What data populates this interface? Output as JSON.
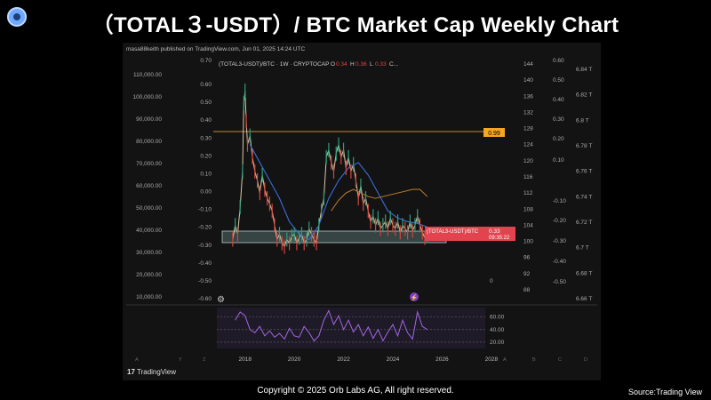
{
  "header": {
    "title": "（TOTAL３-USDT）/ BTC  Market Cap Weekly Chart"
  },
  "chart_info": {
    "published": "masa88keith published on TradingView.com, Jun 01, 2025 14:24 UTC",
    "symbol": "(TOTAL3-USDT)/BTC · 1W · CRYPTOCAP",
    "o_label": "O",
    "o_val": "0.34",
    "h_label": "H",
    "h_val": "0.36",
    "l_label": "L",
    "l_val": "0.33",
    "c_label": "C...",
    "price_tag": "0.99",
    "current_label": "(TOTAL3-USDT)/BTC",
    "current_val": "0.33",
    "countdown": "09:35:22",
    "tv_brand": "TradingView"
  },
  "footer": {
    "copyright": "Copyright  ©  2025 Orb Labs AG, All right reserved.",
    "source": "Source:Trading View"
  },
  "chart_data": {
    "type": "line",
    "axes": {
      "left1": [
        "110,000.00",
        "100,000.00",
        "90,000.00",
        "80,000.00",
        "70,000.00",
        "60,000.00",
        "50,000.00",
        "40,000.00",
        "30,000.00",
        "20,000.00",
        "10,000.00"
      ],
      "left2": [
        "0.60",
        "0.50",
        "0.40",
        "0.30",
        "0.20",
        "0.10",
        "0.00",
        "-0.10",
        "-0.20",
        "-0.30",
        "-0.40",
        "-0.50",
        "-0.60"
      ],
      "left2_top": "0.70",
      "right1": [
        "144",
        "140",
        "136",
        "132",
        "128",
        "124",
        "120",
        "116",
        "112",
        "108",
        "104",
        "100",
        "96",
        "92",
        "88"
      ],
      "right2": [
        "0.60",
        "0.50",
        "0.40",
        "0.30",
        "0.20",
        "0.10",
        "-0.10",
        "-0.20",
        "-0.30",
        "-0.40",
        "-0.50"
      ],
      "right3": [
        "6.84 T",
        "6.82 T",
        "6.8 T",
        "6.78 T",
        "6.76 T",
        "6.74 T",
        "6.72 T",
        "6.7 T",
        "6.68 T",
        "6.66 T"
      ],
      "right1_zero": "0",
      "x": [
        "2018",
        "2020",
        "2022",
        "2024",
        "2026",
        "2028"
      ],
      "osc_ticks": [
        "60.00",
        "40.00",
        "20.00"
      ]
    },
    "series": [
      {
        "values_x": [
          2017.5,
          2017.6,
          2017.7,
          2017.8,
          2017.9,
          2017.95,
          2018.0,
          2018.05,
          2018.1,
          2018.2,
          2018.3,
          2018.4,
          2018.5,
          2018.6,
          2018.7,
          2018.8,
          2018.9,
          2019.0,
          2019.1,
          2019.2,
          2019.3,
          2019.4,
          2019.5,
          2019.6,
          2019.7,
          2019.8,
          2019.9,
          2020.0,
          2020.1,
          2020.2,
          2020.3,
          2020.4,
          2020.5,
          2020.6,
          2020.7,
          2020.8,
          2020.9,
          2021.0,
          2021.1,
          2021.2,
          2021.3,
          2021.4,
          2021.5,
          2021.6,
          2021.7,
          2021.8,
          2021.9,
          2022.0,
          2022.1,
          2022.2,
          2022.3,
          2022.4,
          2022.5,
          2022.6,
          2022.7,
          2022.8,
          2022.9,
          2023.0,
          2023.1,
          2023.2,
          2023.3,
          2023.4,
          2023.5,
          2023.6,
          2023.7,
          2023.8,
          2023.9,
          2024.0,
          2024.1,
          2024.2,
          2024.3,
          2024.4,
          2024.5,
          2024.6,
          2024.7,
          2024.8,
          2024.9,
          2025.0,
          2025.1,
          2025.2,
          2025.3,
          2025.4
        ],
        "values_y": [
          -0.28,
          -0.2,
          -0.25,
          -0.1,
          0.1,
          0.48,
          0.55,
          0.38,
          0.25,
          0.3,
          0.18,
          0.1,
          0.05,
          -0.02,
          0.08,
          0.0,
          -0.05,
          -0.08,
          -0.12,
          -0.2,
          -0.28,
          -0.25,
          -0.3,
          -0.32,
          -0.28,
          -0.3,
          -0.26,
          -0.25,
          -0.3,
          -0.27,
          -0.25,
          -0.3,
          -0.28,
          -0.22,
          -0.25,
          -0.28,
          -0.3,
          -0.2,
          -0.12,
          -0.05,
          0.18,
          0.22,
          0.15,
          0.1,
          0.2,
          0.25,
          0.18,
          0.22,
          0.12,
          0.18,
          0.1,
          0.14,
          0.05,
          -0.05,
          0.02,
          -0.08,
          -0.05,
          -0.12,
          -0.18,
          -0.15,
          -0.2,
          -0.16,
          -0.22,
          -0.2,
          -0.18,
          -0.22,
          -0.16,
          -0.2,
          -0.22,
          -0.18,
          -0.24,
          -0.2,
          -0.22,
          -0.24,
          -0.18,
          -0.23,
          -0.2,
          -0.15,
          -0.2,
          -0.24,
          -0.27,
          -0.26
        ]
      },
      {
        "values_x": [
          2018.2,
          2018.6,
          2019.0,
          2019.4,
          2019.8,
          2020.2,
          2020.6,
          2021.0,
          2021.4,
          2021.8,
          2022.2,
          2022.6,
          2023.0,
          2023.4,
          2023.8,
          2024.2,
          2024.6,
          2025.0,
          2025.4
        ],
        "values_y": [
          0.25,
          0.15,
          0.05,
          -0.05,
          -0.18,
          -0.25,
          -0.28,
          -0.2,
          -0.05,
          0.05,
          0.12,
          0.15,
          0.08,
          -0.02,
          -0.12,
          -0.16,
          -0.18,
          -0.19,
          -0.21
        ]
      },
      {
        "values_x": [
          2021.5,
          2021.8,
          2022.1,
          2022.4,
          2022.7,
          2023.0,
          2023.3,
          2023.6,
          2023.9,
          2024.2,
          2024.5,
          2024.8,
          2025.1,
          2025.4
        ],
        "values_y": [
          -0.12,
          -0.06,
          -0.02,
          0.0,
          -0.02,
          -0.04,
          -0.05,
          -0.04,
          -0.03,
          -0.02,
          -0.01,
          0.0,
          0.0,
          -0.04
        ]
      }
    ],
    "oscillator": {
      "values_x": [
        2017.6,
        2017.8,
        2018.0,
        2018.2,
        2018.4,
        2018.6,
        2018.8,
        2019.0,
        2019.2,
        2019.4,
        2019.6,
        2019.8,
        2020.0,
        2020.2,
        2020.4,
        2020.6,
        2020.8,
        2021.0,
        2021.2,
        2021.4,
        2021.6,
        2021.8,
        2022.0,
        2022.2,
        2022.4,
        2022.6,
        2022.8,
        2023.0,
        2023.2,
        2023.4,
        2023.6,
        2023.8,
        2024.0,
        2024.2,
        2024.4,
        2024.6,
        2024.8,
        2025.0,
        2025.2,
        2025.4
      ],
      "values_y": [
        55,
        68,
        62,
        40,
        35,
        45,
        30,
        38,
        28,
        34,
        25,
        42,
        30,
        28,
        45,
        35,
        22,
        30,
        55,
        70,
        48,
        62,
        40,
        55,
        36,
        48,
        30,
        44,
        26,
        40,
        22,
        36,
        48,
        30,
        55,
        35,
        25,
        68,
        45,
        40
      ]
    },
    "annotations": {
      "box_ylim": [
        -0.26,
        -0.33
      ],
      "hline": 0.99
    }
  }
}
